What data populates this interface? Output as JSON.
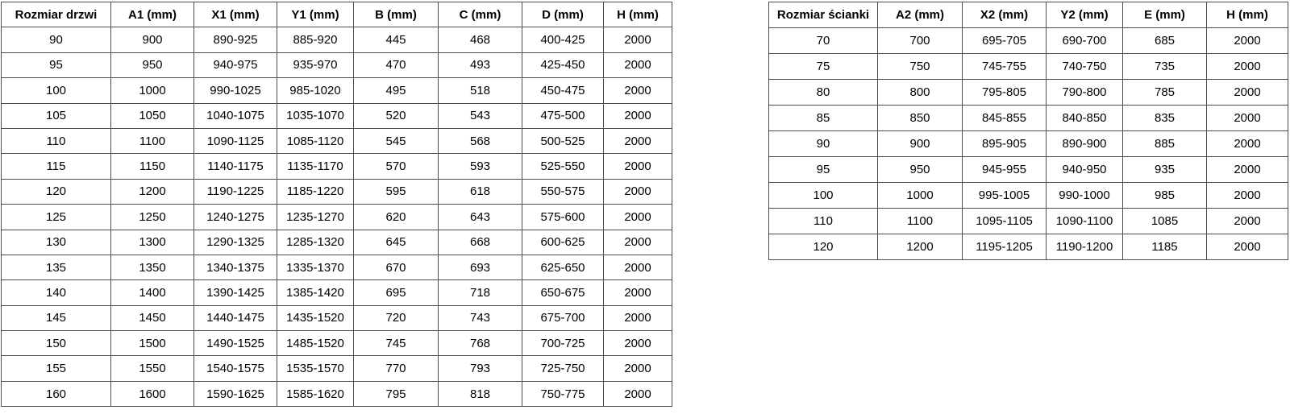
{
  "colors": {
    "background": "#ffffff",
    "border": "#4d4d4d",
    "text": "#000000"
  },
  "tables": [
    {
      "id": "door-size-table",
      "name": "door-size-table",
      "headers": [
        "Rozmiar drzwi",
        "A1 (mm)",
        "X1 (mm)",
        "Y1 (mm)",
        "B (mm)",
        "C (mm)",
        "D (mm)",
        "H (mm)"
      ],
      "rows": [
        [
          "90",
          "900",
          "890-925",
          "885-920",
          "445",
          "468",
          "400-425",
          "2000"
        ],
        [
          "95",
          "950",
          "940-975",
          "935-970",
          "470",
          "493",
          "425-450",
          "2000"
        ],
        [
          "100",
          "1000",
          "990-1025",
          "985-1020",
          "495",
          "518",
          "450-475",
          "2000"
        ],
        [
          "105",
          "1050",
          "1040-1075",
          "1035-1070",
          "520",
          "543",
          "475-500",
          "2000"
        ],
        [
          "110",
          "1100",
          "1090-1125",
          "1085-1120",
          "545",
          "568",
          "500-525",
          "2000"
        ],
        [
          "115",
          "1150",
          "1140-1175",
          "1135-1170",
          "570",
          "593",
          "525-550",
          "2000"
        ],
        [
          "120",
          "1200",
          "1190-1225",
          "1185-1220",
          "595",
          "618",
          "550-575",
          "2000"
        ],
        [
          "125",
          "1250",
          "1240-1275",
          "1235-1270",
          "620",
          "643",
          "575-600",
          "2000"
        ],
        [
          "130",
          "1300",
          "1290-1325",
          "1285-1320",
          "645",
          "668",
          "600-625",
          "2000"
        ],
        [
          "135",
          "1350",
          "1340-1375",
          "1335-1370",
          "670",
          "693",
          "625-650",
          "2000"
        ],
        [
          "140",
          "1400",
          "1390-1425",
          "1385-1420",
          "695",
          "718",
          "650-675",
          "2000"
        ],
        [
          "145",
          "1450",
          "1440-1475",
          "1435-1520",
          "720",
          "743",
          "675-700",
          "2000"
        ],
        [
          "150",
          "1500",
          "1490-1525",
          "1485-1520",
          "745",
          "768",
          "700-725",
          "2000"
        ],
        [
          "155",
          "1550",
          "1540-1575",
          "1535-1570",
          "770",
          "793",
          "725-750",
          "2000"
        ],
        [
          "160",
          "1600",
          "1590-1625",
          "1585-1620",
          "795",
          "818",
          "750-775",
          "2000"
        ]
      ]
    },
    {
      "id": "wall-size-table",
      "name": "wall-size-table",
      "headers": [
        "Rozmiar ścianki",
        "A2 (mm)",
        "X2 (mm)",
        "Y2 (mm)",
        "E (mm)",
        "H (mm)"
      ],
      "rows": [
        [
          "70",
          "700",
          "695-705",
          "690-700",
          "685",
          "2000"
        ],
        [
          "75",
          "750",
          "745-755",
          "740-750",
          "735",
          "2000"
        ],
        [
          "80",
          "800",
          "795-805",
          "790-800",
          "785",
          "2000"
        ],
        [
          "85",
          "850",
          "845-855",
          "840-850",
          "835",
          "2000"
        ],
        [
          "90",
          "900",
          "895-905",
          "890-900",
          "885",
          "2000"
        ],
        [
          "95",
          "950",
          "945-955",
          "940-950",
          "935",
          "2000"
        ],
        [
          "100",
          "1000",
          "995-1005",
          "990-1000",
          "985",
          "2000"
        ],
        [
          "110",
          "1100",
          "1095-1105",
          "1090-1100",
          "1085",
          "2000"
        ],
        [
          "120",
          "1200",
          "1195-1205",
          "1190-1200",
          "1185",
          "2000"
        ]
      ]
    }
  ]
}
